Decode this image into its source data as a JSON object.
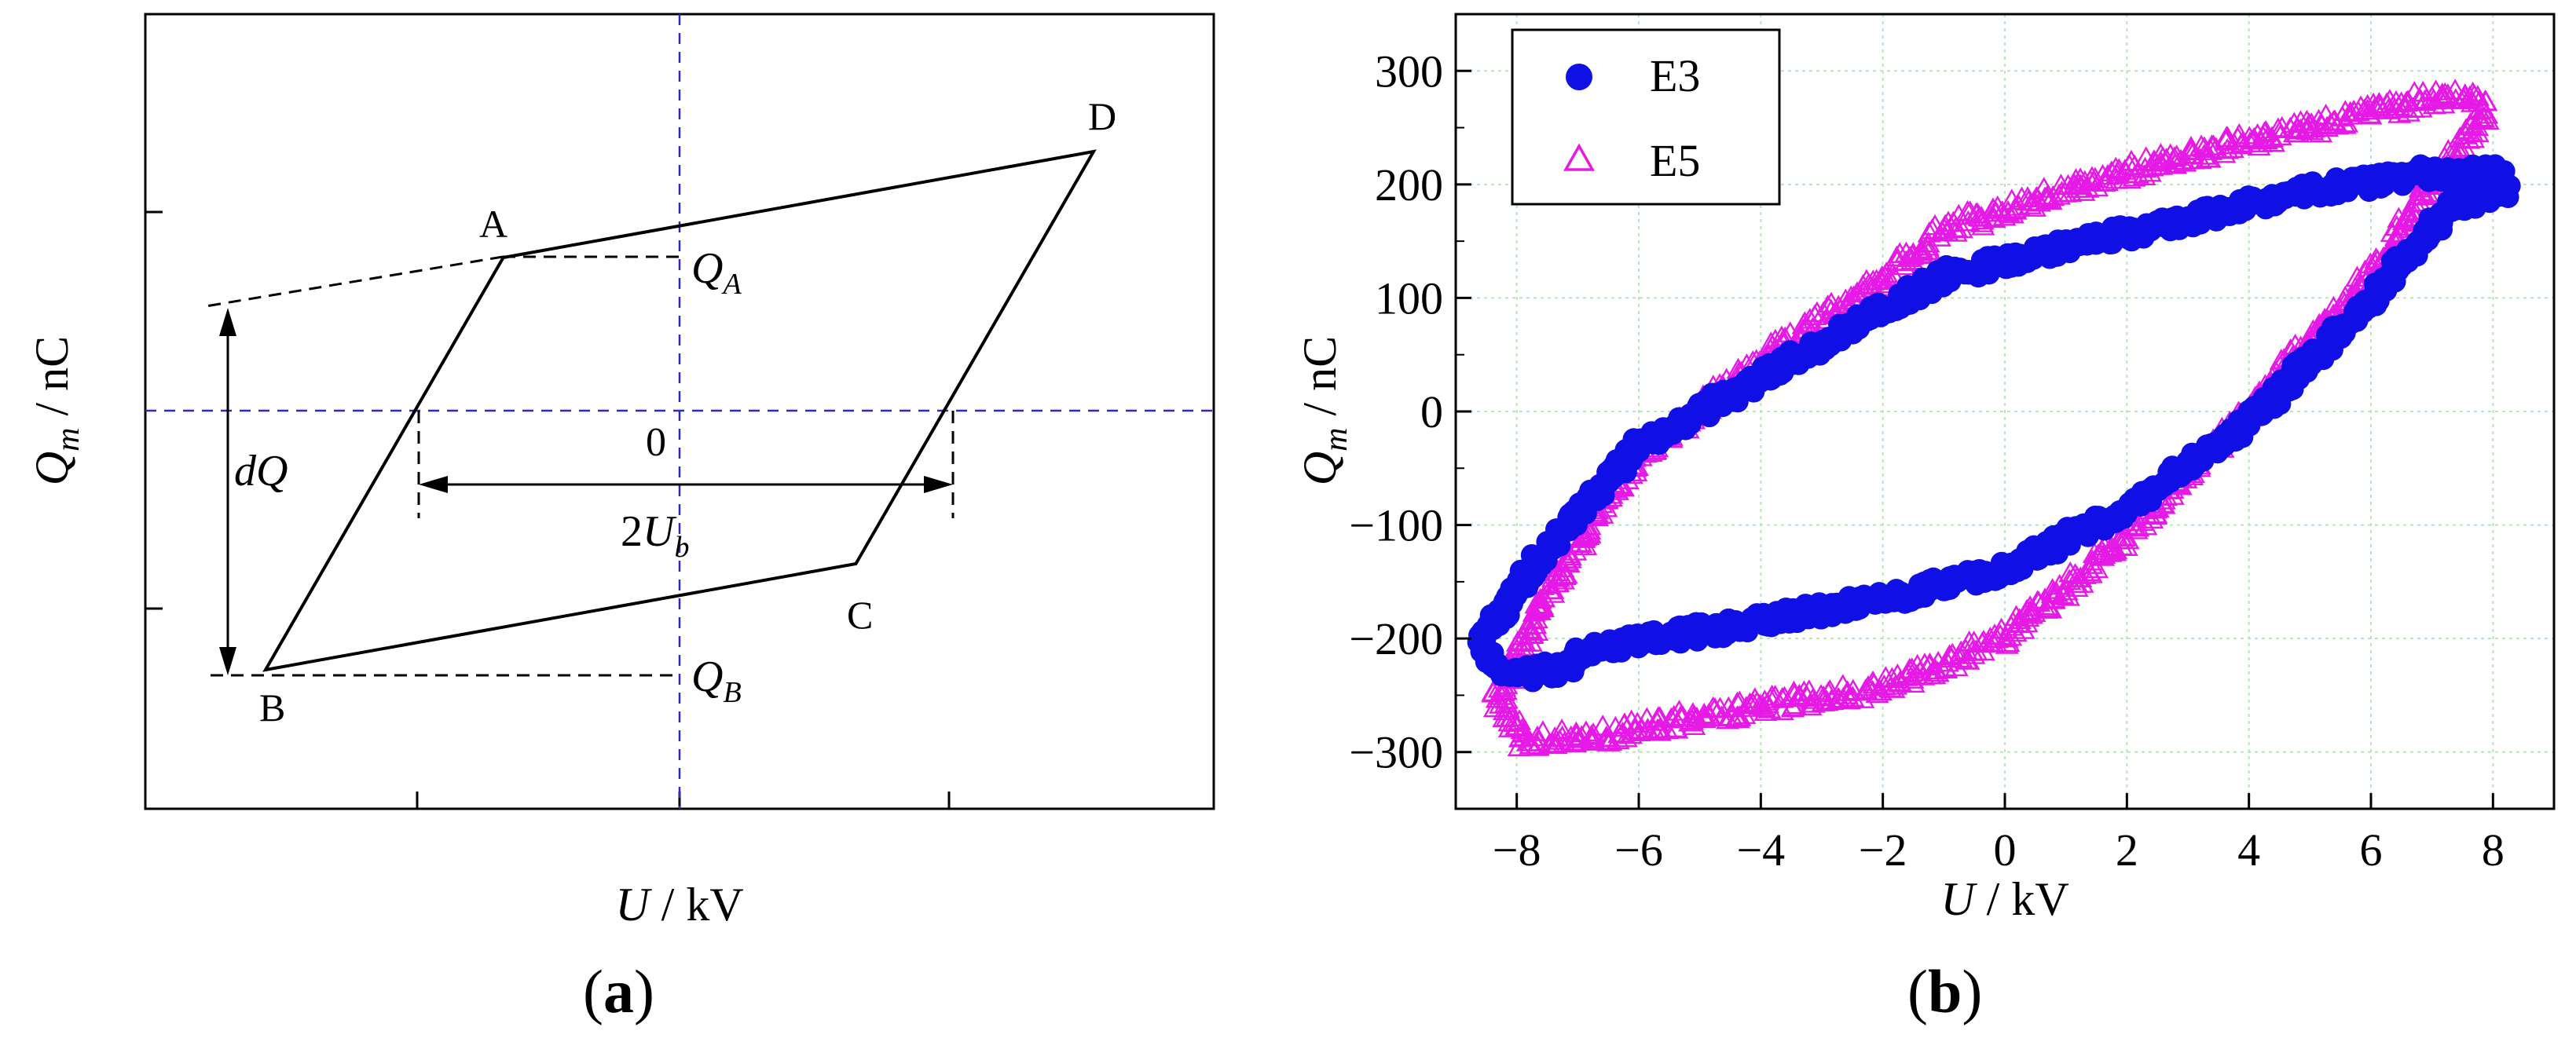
{
  "panels": [
    {
      "label_open": "(",
      "label_letter": "a",
      "label_close": ")"
    },
    {
      "label_open": "(",
      "label_letter": "b",
      "label_close": ")"
    }
  ],
  "colors": {
    "e3": "#1010e6",
    "e5": "#e619e6",
    "guide": "#2c2cb4",
    "grid": "#b7e6b7"
  },
  "chart_data": [
    {
      "type": "diagram",
      "xlabel": {
        "var": "U",
        "unit": " / kV"
      },
      "ylabel": {
        "var": "Q",
        "sub": "m",
        "unit": " / nC"
      },
      "xlim": [
        -1,
        1
      ],
      "ylim": [
        -1,
        1
      ],
      "points": {
        "A": {
          "label": "A",
          "x": -0.66,
          "y": 0.78
        },
        "D": {
          "label": "D",
          "x": 1.55,
          "y": 1.32
        },
        "C": {
          "label": "C",
          "x": 0.66,
          "y": -0.78
        },
        "B": {
          "label": "B",
          "x": -1.55,
          "y": -1.32
        }
      },
      "zero_label": "0",
      "annotations": {
        "qa": {
          "var": "Q",
          "sub": "A"
        },
        "qb": {
          "var": "Q",
          "sub": "B"
        },
        "dq": "dQ",
        "ub": {
          "prefix": "2",
          "var": "U",
          "sub": "b"
        }
      }
    },
    {
      "type": "scatter",
      "xlabel": {
        "var": "U",
        "unit": " / kV"
      },
      "ylabel": {
        "var": "Q",
        "sub": "m",
        "unit": " / nC"
      },
      "xlim": [
        -9,
        9
      ],
      "ylim": [
        -350,
        350
      ],
      "xticks": [
        -8,
        -6,
        -4,
        -2,
        0,
        2,
        4,
        6,
        8
      ],
      "yticks": [
        300,
        200,
        100,
        0,
        -100,
        -200,
        -300
      ],
      "grid": true,
      "legend": {
        "position": "top-left"
      },
      "series": [
        {
          "name": "E3",
          "marker": "filled-circle",
          "loop": [
            [
              -8.6,
              -205
            ],
            [
              -8.2,
              -235
            ],
            [
              -7.2,
              -225
            ],
            [
              -6.8,
              -210
            ],
            [
              -4.0,
              -185
            ],
            [
              -2.0,
              -165
            ],
            [
              0.0,
              -140
            ],
            [
              2.0,
              -85
            ],
            [
              4.0,
              -10
            ],
            [
              6.0,
              100
            ],
            [
              7.3,
              180
            ],
            [
              8.2,
              195
            ],
            [
              8.1,
              210
            ],
            [
              7.0,
              210
            ],
            [
              5.0,
              195
            ],
            [
              3.0,
              170
            ],
            [
              1.0,
              145
            ],
            [
              -1.0,
              120
            ],
            [
              -2.0,
              90
            ],
            [
              -4.0,
              30
            ],
            [
              -6.0,
              -30
            ],
            [
              -7.5,
              -120
            ],
            [
              -8.6,
              -205
            ]
          ]
        },
        {
          "name": "E5",
          "marker": "open-triangle",
          "loop": [
            [
              -8.3,
              -255
            ],
            [
              -7.9,
              -290
            ],
            [
              -6.5,
              -285
            ],
            [
              -4.0,
              -260
            ],
            [
              -2.0,
              -245
            ],
            [
              0.0,
              -200
            ],
            [
              2.0,
              -110
            ],
            [
              4.0,
              0
            ],
            [
              6.0,
              120
            ],
            [
              7.4,
              230
            ],
            [
              7.9,
              265
            ],
            [
              7.7,
              275
            ],
            [
              7.0,
              275
            ],
            [
              5.0,
              250
            ],
            [
              3.0,
              225
            ],
            [
              1.0,
              195
            ],
            [
              -1.0,
              160
            ],
            [
              -2.0,
              115
            ],
            [
              -4.0,
              45
            ],
            [
              -6.0,
              -40
            ],
            [
              -7.5,
              -160
            ],
            [
              -8.3,
              -255
            ]
          ]
        }
      ]
    }
  ]
}
